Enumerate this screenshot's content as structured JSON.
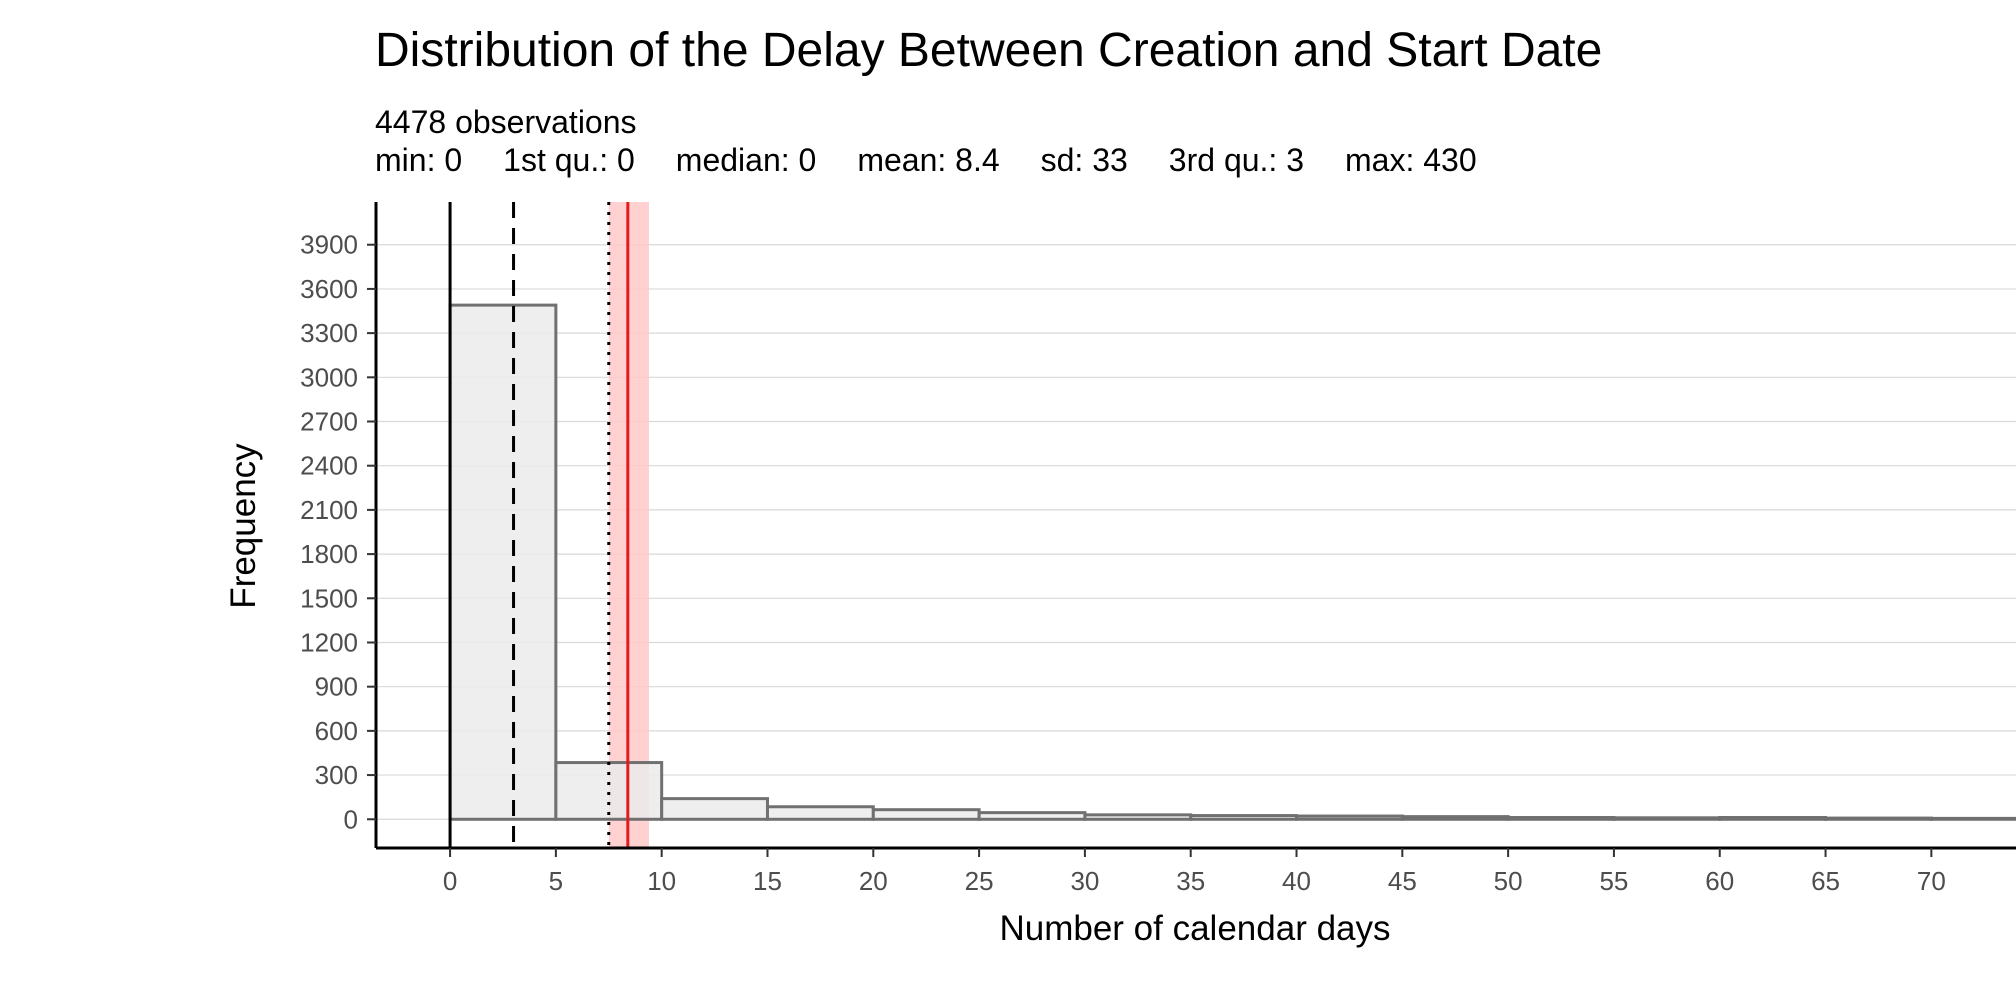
{
  "title": "Distribution of the Delay Between Creation and Start Date",
  "subtitle": {
    "observations": "4478 observations",
    "stats": [
      "min: 0",
      "1st qu.: 0",
      "median: 0",
      "mean: 8.4",
      "sd: 33",
      "3rd qu.: 3",
      "max: 430"
    ]
  },
  "colors": {
    "bar_fill": "#ebebeb",
    "bar_stroke": "#707070",
    "grid": "#d9d9d9",
    "axis": "#000000",
    "mean_line": "#e41a1c",
    "mean_band": "#ffc9c9",
    "tick_label": "#4d4d4d"
  },
  "chart_data": {
    "type": "bar",
    "xlabel": "Number of calendar days",
    "ylabel": "Frequency",
    "xlim": [
      -3.5,
      74
    ],
    "ylim": [
      -195,
      4190
    ],
    "x_ticks": [
      0,
      5,
      10,
      15,
      20,
      25,
      30,
      35,
      40,
      45,
      50,
      55,
      60,
      65,
      70
    ],
    "y_ticks": [
      0,
      300,
      600,
      900,
      1200,
      1500,
      1800,
      2100,
      2400,
      2700,
      3000,
      3300,
      3600,
      3900
    ],
    "grid": "horizontal",
    "bin_width": 5,
    "bins": [
      {
        "start": 0,
        "count": 3490
      },
      {
        "start": 5,
        "count": 385
      },
      {
        "start": 10,
        "count": 140
      },
      {
        "start": 15,
        "count": 85
      },
      {
        "start": 20,
        "count": 65
      },
      {
        "start": 25,
        "count": 45
      },
      {
        "start": 30,
        "count": 30
      },
      {
        "start": 35,
        "count": 25
      },
      {
        "start": 40,
        "count": 22
      },
      {
        "start": 45,
        "count": 18
      },
      {
        "start": 50,
        "count": 12
      },
      {
        "start": 55,
        "count": 10
      },
      {
        "start": 60,
        "count": 12
      },
      {
        "start": 65,
        "count": 8
      },
      {
        "start": 70,
        "count": 6
      }
    ],
    "reference_lines": {
      "median": {
        "x": 0,
        "style": "solid",
        "color": "#000000"
      },
      "third_quartile": {
        "x": 3,
        "style": "dashed",
        "color": "#000000"
      },
      "mean": {
        "x": 8.4,
        "style": "solid",
        "color": "#e41a1c"
      },
      "mean_band": [
        7.5,
        9.4
      ],
      "dotted": {
        "x": 7.5,
        "style": "dotted",
        "color": "#000000"
      }
    }
  }
}
